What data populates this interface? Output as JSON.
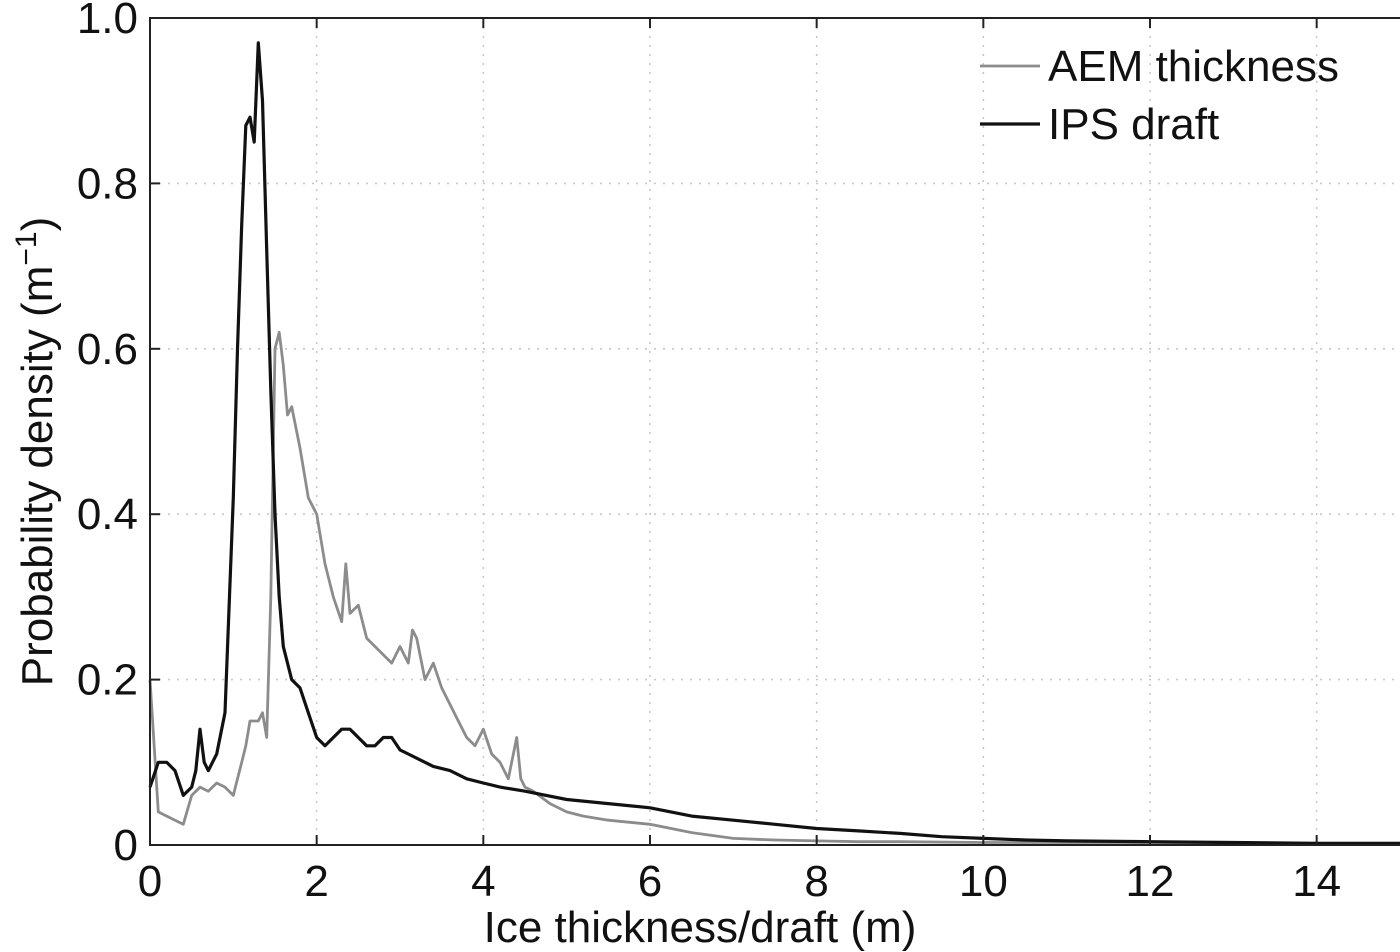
{
  "chart_data": {
    "type": "line",
    "xlabel": "Ice thickness/draft (m)",
    "ylabel": "Probability density (m",
    "ylabel_sup": "−1",
    "ylabel_end": ")",
    "xlim": [
      0,
      15
    ],
    "ylim": [
      0,
      1.0
    ],
    "xticks": [
      0,
      2,
      4,
      6,
      8,
      10,
      12,
      14
    ],
    "yticks": [
      0,
      0.2,
      0.4,
      0.6,
      0.8,
      1.0
    ],
    "xtick_labels": [
      "0",
      "2",
      "4",
      "6",
      "8",
      "10",
      "12",
      "14"
    ],
    "ytick_labels": [
      "0",
      "0.2",
      "0.4",
      "0.6",
      "0.8",
      "1.0"
    ],
    "grid": true,
    "legend_position": "top-right",
    "series": [
      {
        "name": "AEM thickness",
        "color": "#8c8c8c",
        "x": [
          0,
          0.1,
          0.2,
          0.3,
          0.4,
          0.5,
          0.6,
          0.7,
          0.8,
          0.9,
          1.0,
          1.1,
          1.15,
          1.2,
          1.3,
          1.35,
          1.4,
          1.45,
          1.5,
          1.55,
          1.6,
          1.65,
          1.7,
          1.8,
          1.9,
          2.0,
          2.1,
          2.2,
          2.3,
          2.35,
          2.4,
          2.5,
          2.6,
          2.7,
          2.8,
          2.9,
          3.0,
          3.1,
          3.15,
          3.2,
          3.3,
          3.4,
          3.5,
          3.6,
          3.7,
          3.8,
          3.9,
          4.0,
          4.1,
          4.2,
          4.3,
          4.4,
          4.45,
          4.5,
          4.6,
          4.8,
          5.0,
          5.2,
          5.5,
          6.0,
          6.5,
          7.0,
          7.5,
          8.0,
          8.5,
          9.0,
          10.0,
          11.0,
          12.0,
          13.0,
          14.0,
          15.0
        ],
        "y": [
          0.2,
          0.04,
          0.035,
          0.03,
          0.025,
          0.06,
          0.07,
          0.065,
          0.075,
          0.07,
          0.06,
          0.1,
          0.12,
          0.15,
          0.15,
          0.16,
          0.13,
          0.3,
          0.6,
          0.62,
          0.58,
          0.52,
          0.53,
          0.48,
          0.42,
          0.4,
          0.34,
          0.3,
          0.27,
          0.34,
          0.28,
          0.29,
          0.25,
          0.24,
          0.23,
          0.22,
          0.24,
          0.22,
          0.26,
          0.25,
          0.2,
          0.22,
          0.19,
          0.17,
          0.15,
          0.13,
          0.12,
          0.14,
          0.11,
          0.1,
          0.08,
          0.13,
          0.08,
          0.07,
          0.065,
          0.05,
          0.04,
          0.035,
          0.03,
          0.025,
          0.015,
          0.008,
          0.006,
          0.005,
          0.004,
          0.004,
          0.003,
          0.003,
          0.003,
          0.002,
          0.002,
          0.002
        ]
      },
      {
        "name": "IPS draft",
        "color": "#111111",
        "x": [
          0,
          0.1,
          0.2,
          0.3,
          0.4,
          0.5,
          0.55,
          0.6,
          0.65,
          0.7,
          0.8,
          0.9,
          1.0,
          1.05,
          1.1,
          1.15,
          1.2,
          1.25,
          1.3,
          1.35,
          1.4,
          1.45,
          1.5,
          1.55,
          1.6,
          1.65,
          1.7,
          1.8,
          1.9,
          2.0,
          2.1,
          2.2,
          2.3,
          2.4,
          2.5,
          2.6,
          2.7,
          2.8,
          2.9,
          3.0,
          3.1,
          3.2,
          3.3,
          3.4,
          3.6,
          3.8,
          4.0,
          4.2,
          4.5,
          5.0,
          5.5,
          6.0,
          6.5,
          7.0,
          7.5,
          8.0,
          8.5,
          9.0,
          9.5,
          10.0,
          10.5,
          11.0,
          12.0,
          13.0,
          14.0,
          15.0
        ],
        "y": [
          0.07,
          0.1,
          0.1,
          0.09,
          0.06,
          0.07,
          0.09,
          0.14,
          0.1,
          0.09,
          0.11,
          0.16,
          0.42,
          0.6,
          0.75,
          0.87,
          0.88,
          0.85,
          0.97,
          0.9,
          0.72,
          0.55,
          0.4,
          0.3,
          0.24,
          0.22,
          0.2,
          0.19,
          0.16,
          0.13,
          0.12,
          0.13,
          0.14,
          0.14,
          0.13,
          0.12,
          0.12,
          0.13,
          0.13,
          0.115,
          0.11,
          0.105,
          0.1,
          0.095,
          0.09,
          0.08,
          0.075,
          0.07,
          0.065,
          0.055,
          0.05,
          0.045,
          0.035,
          0.03,
          0.025,
          0.02,
          0.017,
          0.014,
          0.01,
          0.008,
          0.006,
          0.005,
          0.004,
          0.003,
          0.002,
          0.002
        ]
      }
    ]
  }
}
